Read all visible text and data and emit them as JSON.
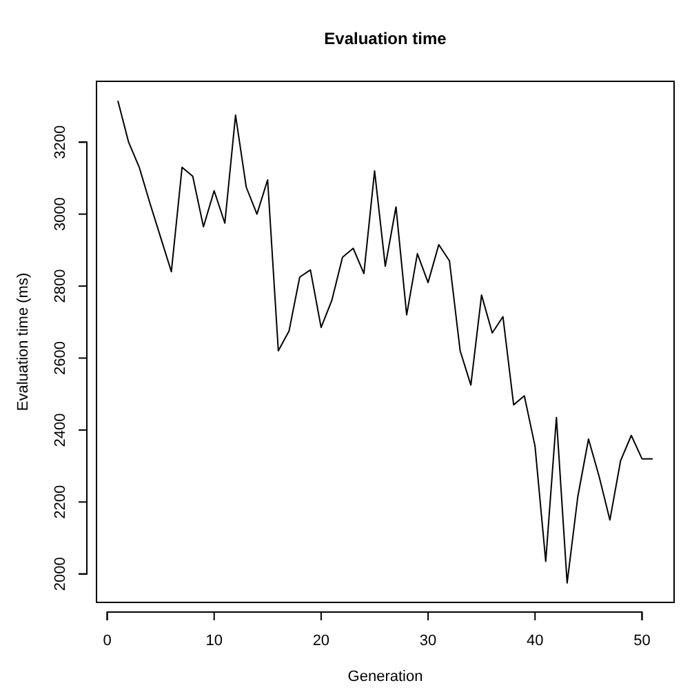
{
  "chart_data": {
    "type": "line",
    "title": "Evaluation time",
    "xlabel": "Generation",
    "ylabel": "Evaluation time (ms)",
    "x": [
      1,
      2,
      3,
      4,
      5,
      6,
      7,
      8,
      9,
      10,
      11,
      12,
      13,
      14,
      15,
      16,
      17,
      18,
      19,
      20,
      21,
      22,
      23,
      24,
      25,
      26,
      27,
      28,
      29,
      30,
      31,
      32,
      33,
      34,
      35,
      36,
      37,
      38,
      39,
      40,
      41,
      42,
      43,
      44,
      45,
      46,
      47,
      48,
      49,
      50,
      51
    ],
    "values": [
      3315,
      3200,
      3130,
      3030,
      2935,
      2840,
      3130,
      3105,
      2965,
      3065,
      2975,
      3275,
      3075,
      3000,
      3095,
      2620,
      2675,
      2825,
      2845,
      2685,
      2760,
      2880,
      2905,
      2835,
      3120,
      2855,
      3020,
      2720,
      2890,
      2810,
      2915,
      2870,
      2620,
      2525,
      2775,
      2670,
      2715,
      2470,
      2495,
      2355,
      2035,
      2435,
      1975,
      2215,
      2375,
      2270,
      2150,
      2315,
      2385,
      2320,
      2320
    ],
    "color": "#000000",
    "xlim": [
      -1,
      53
    ],
    "ylim": [
      1921,
      3369
    ],
    "xticks": [
      0,
      10,
      20,
      30,
      40,
      50
    ],
    "yticks": [
      2000,
      2200,
      2400,
      2600,
      2800,
      3000,
      3200
    ],
    "grid": false,
    "marker": "none",
    "line_style": "solid"
  }
}
